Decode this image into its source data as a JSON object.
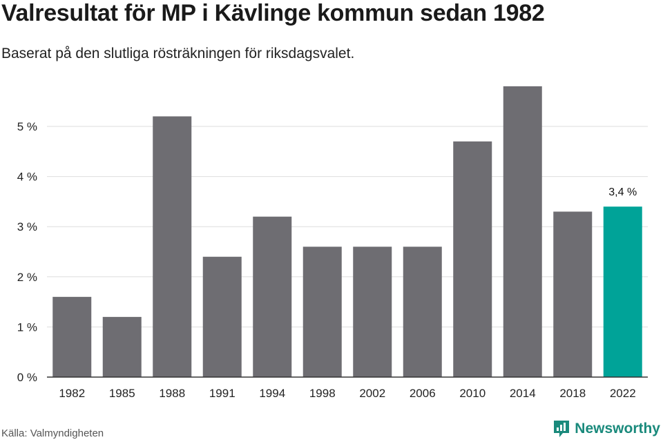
{
  "title": "Valresultat för MP i Kävlinge kommun sedan 1982",
  "subtitle": "Baserat på den slutliga rösträkningen för riksdagsvalet.",
  "source": "Källa: Valmyndigheten",
  "brand": {
    "name": "Newsworthy",
    "icon": "newsworthy-logo-icon",
    "color": "#1a8a7c"
  },
  "colors": {
    "bar": "#6e6d72",
    "highlight": "#00a398",
    "grid": "#dddddd",
    "axis": "#333333"
  },
  "chart_data": {
    "type": "bar",
    "title": "Valresultat för MP i Kävlinge kommun sedan 1982",
    "subtitle": "Baserat på den slutliga rösträkningen för riksdagsvalet.",
    "categories": [
      "1982",
      "1985",
      "1988",
      "1991",
      "1994",
      "1998",
      "2002",
      "2006",
      "2010",
      "2014",
      "2018",
      "2022"
    ],
    "values": [
      1.6,
      1.2,
      5.2,
      2.4,
      3.2,
      2.6,
      2.6,
      2.6,
      4.7,
      5.8,
      3.3,
      3.4
    ],
    "unit": "%",
    "highlight_index": 11,
    "highlight_label": "3,4 %",
    "yticks": [
      "0 %",
      "1 %",
      "2 %",
      "3 %",
      "4 %",
      "5 %"
    ],
    "ylim": [
      0,
      5.8
    ],
    "grid": true,
    "legend": "none"
  }
}
